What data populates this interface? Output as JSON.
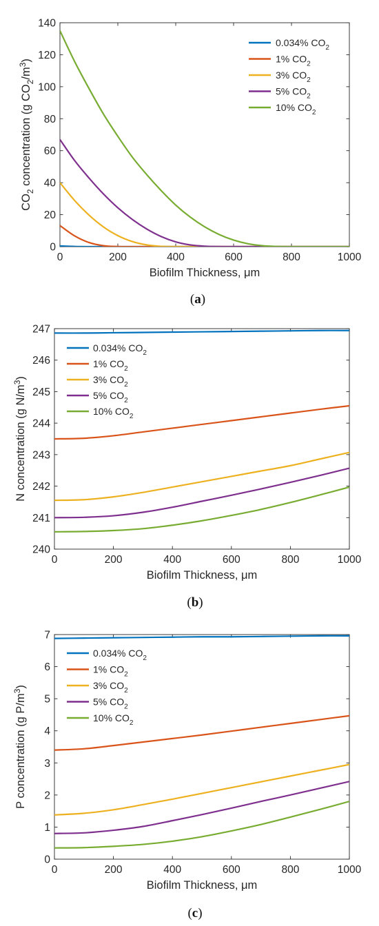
{
  "chart_data": [
    {
      "type": "line",
      "panel_label": "a",
      "xlabel": "Biofilm Thickness, μm",
      "ylabel": "CO2 concentration (g CO2/m3)",
      "xlim": [
        0,
        1000
      ],
      "ylim": [
        0,
        140
      ],
      "xticks": [
        "0",
        "200",
        "400",
        "600",
        "800",
        "1000"
      ],
      "yticks": [
        "0",
        "20",
        "40",
        "60",
        "80",
        "100",
        "120",
        "140"
      ],
      "legend_position": "top-right",
      "grid": false,
      "x": [
        0,
        50,
        100,
        150,
        200,
        250,
        300,
        350,
        400,
        450,
        500,
        550,
        600,
        650,
        700,
        750,
        800,
        850,
        900,
        950,
        1000
      ],
      "series": [
        {
          "name": "0.034% CO2",
          "color": "#0072BD",
          "values": [
            0.45,
            0.1,
            0,
            0,
            0,
            0,
            0,
            0,
            0,
            0,
            0,
            0,
            0,
            0,
            0,
            0,
            0,
            0,
            0,
            0,
            0
          ]
        },
        {
          "name": "1% CO2",
          "color": "#D95319",
          "values": [
            13.2,
            6.8,
            2.6,
            0.6,
            0.05,
            0,
            0,
            0,
            0,
            0,
            0,
            0,
            0,
            0,
            0,
            0,
            0,
            0,
            0,
            0,
            0
          ]
        },
        {
          "name": "3% CO2",
          "color": "#EDB120",
          "values": [
            40,
            29,
            19.8,
            12.4,
            6.9,
            3.2,
            1.1,
            0.2,
            0,
            0,
            0,
            0,
            0,
            0,
            0,
            0,
            0,
            0,
            0,
            0,
            0
          ]
        },
        {
          "name": "5% CO2",
          "color": "#7E2F8E",
          "values": [
            67,
            54,
            43,
            33,
            24.3,
            17,
            11,
            6.3,
            3,
            1.1,
            0.3,
            0.05,
            0,
            0,
            0,
            0,
            0,
            0,
            0,
            0,
            0
          ]
        },
        {
          "name": "10% CO2",
          "color": "#77AC30",
          "values": [
            135,
            116,
            99,
            83,
            69,
            56,
            45,
            35,
            26,
            18.5,
            12.4,
            7.6,
            4.1,
            1.8,
            0.6,
            0.1,
            0,
            0,
            0,
            0,
            0
          ]
        }
      ]
    },
    {
      "type": "line",
      "panel_label": "b",
      "xlabel": "Biofilm Thickness, μm",
      "ylabel": "N concentration (g N/m3)",
      "xlim": [
        0,
        1000
      ],
      "ylim": [
        240,
        247
      ],
      "xticks": [
        "0",
        "200",
        "400",
        "600",
        "800",
        "1000"
      ],
      "yticks": [
        "240",
        "241",
        "242",
        "243",
        "244",
        "245",
        "246",
        "247"
      ],
      "legend_position": "top-left",
      "grid": false,
      "x": [
        0,
        100,
        200,
        300,
        400,
        500,
        600,
        700,
        800,
        900,
        1000
      ],
      "series": [
        {
          "name": "0.034% CO2",
          "color": "#0072BD",
          "values": [
            246.86,
            246.86,
            246.87,
            246.88,
            246.89,
            246.9,
            246.91,
            246.92,
            246.93,
            246.94,
            246.94
          ]
        },
        {
          "name": "1% CO2",
          "color": "#D95319",
          "values": [
            243.5,
            243.52,
            243.6,
            243.72,
            243.84,
            243.96,
            244.08,
            244.2,
            244.32,
            244.44,
            244.55
          ]
        },
        {
          "name": "3% CO2",
          "color": "#EDB120",
          "values": [
            241.55,
            241.57,
            241.66,
            241.8,
            241.97,
            242.14,
            242.31,
            242.48,
            242.65,
            242.86,
            243.07
          ]
        },
        {
          "name": "5% CO2",
          "color": "#7E2F8E",
          "values": [
            241.0,
            241.01,
            241.06,
            241.17,
            241.33,
            241.52,
            241.71,
            241.91,
            242.12,
            242.34,
            242.57
          ]
        },
        {
          "name": "10% CO2",
          "color": "#77AC30",
          "values": [
            240.55,
            240.56,
            240.59,
            240.65,
            240.76,
            240.9,
            241.07,
            241.26,
            241.48,
            241.72,
            241.97
          ]
        }
      ]
    },
    {
      "type": "line",
      "panel_label": "c",
      "xlabel": "Biofilm Thickness, μm",
      "ylabel": "P concentration (g P/m3)",
      "xlim": [
        0,
        1000
      ],
      "ylim": [
        0,
        7
      ],
      "xticks": [
        "0",
        "200",
        "400",
        "600",
        "800",
        "1000"
      ],
      "yticks": [
        "0",
        "1",
        "2",
        "3",
        "4",
        "5",
        "6",
        "7"
      ],
      "legend_position": "top-left",
      "grid": false,
      "x": [
        0,
        100,
        200,
        300,
        400,
        500,
        600,
        700,
        800,
        900,
        1000
      ],
      "series": [
        {
          "name": "0.034% CO2",
          "color": "#0072BD",
          "values": [
            6.88,
            6.89,
            6.9,
            6.91,
            6.92,
            6.93,
            6.93,
            6.94,
            6.95,
            6.96,
            6.96
          ]
        },
        {
          "name": "1% CO2",
          "color": "#D95319",
          "values": [
            3.4,
            3.44,
            3.54,
            3.65,
            3.76,
            3.87,
            3.99,
            4.11,
            4.23,
            4.35,
            4.47
          ]
        },
        {
          "name": "3% CO2",
          "color": "#EDB120",
          "values": [
            1.38,
            1.43,
            1.54,
            1.7,
            1.87,
            2.05,
            2.23,
            2.41,
            2.59,
            2.77,
            2.95
          ]
        },
        {
          "name": "5% CO2",
          "color": "#7E2F8E",
          "values": [
            0.8,
            0.82,
            0.9,
            1.02,
            1.2,
            1.39,
            1.59,
            1.8,
            2.0,
            2.21,
            2.42
          ]
        },
        {
          "name": "10% CO2",
          "color": "#77AC30",
          "values": [
            0.35,
            0.36,
            0.4,
            0.46,
            0.56,
            0.7,
            0.88,
            1.08,
            1.31,
            1.55,
            1.8
          ]
        }
      ]
    }
  ]
}
